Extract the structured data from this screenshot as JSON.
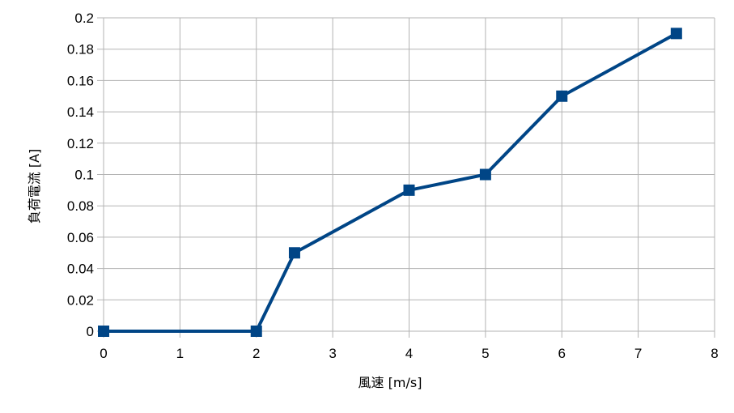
{
  "chart_data": {
    "type": "line",
    "title": "",
    "xlabel": "風速 [m/s]",
    "ylabel": "負荷電流 [A]",
    "xlim": [
      0,
      8
    ],
    "ylim": [
      0,
      0.2
    ],
    "x_ticks": [
      "0",
      "1",
      "2",
      "3",
      "4",
      "5",
      "6",
      "7",
      "8"
    ],
    "y_ticks": [
      "0",
      "0.02",
      "0.04",
      "0.06",
      "0.08",
      "0.1",
      "0.12",
      "0.14",
      "0.16",
      "0.18",
      "0.2"
    ],
    "grid": true,
    "legend": "none",
    "series": [
      {
        "x": [
          0,
          2,
          2.5,
          4,
          5,
          6,
          7.5
        ],
        "y": [
          0,
          0,
          0.05,
          0.09,
          0.1,
          0.15,
          0.19
        ],
        "color": "#004586",
        "marker": "square"
      }
    ]
  }
}
